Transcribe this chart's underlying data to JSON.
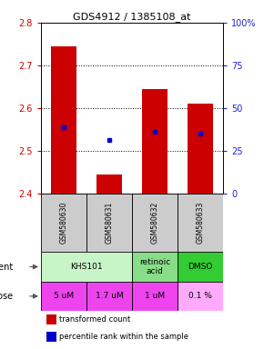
{
  "title": "GDS4912 / 1385108_at",
  "samples": [
    "GSM580630",
    "GSM580631",
    "GSM580632",
    "GSM580633"
  ],
  "bar_bottoms": [
    2.4,
    2.4,
    2.4,
    2.4
  ],
  "bar_tops": [
    2.745,
    2.445,
    2.645,
    2.61
  ],
  "blue_dots": [
    2.555,
    2.525,
    2.545,
    2.54
  ],
  "ylim": [
    2.4,
    2.8
  ],
  "yticks_left": [
    2.4,
    2.5,
    2.6,
    2.7,
    2.8
  ],
  "yticks_right": [
    0,
    25,
    50,
    75,
    100
  ],
  "ytick_labels_right": [
    "0",
    "25",
    "50",
    "75",
    "100%"
  ],
  "bar_color": "#cc0000",
  "dot_color": "#0000cc",
  "agent_spans": [
    [
      0,
      2,
      "KHS101",
      "#c8f5c8"
    ],
    [
      2,
      3,
      "retinoic\nacid",
      "#88dd88"
    ],
    [
      3,
      4,
      "DMSO",
      "#33cc33"
    ]
  ],
  "dose_labels": [
    "5 uM",
    "1.7 uM",
    "1 uM",
    "0.1 %"
  ],
  "dose_colors": [
    "#ee44ee",
    "#ee44ee",
    "#ee44ee",
    "#ffaaff"
  ],
  "sample_bg": "#cccccc",
  "left_yaxis_color": "#cc0000",
  "right_yaxis_color": "#2222cc"
}
